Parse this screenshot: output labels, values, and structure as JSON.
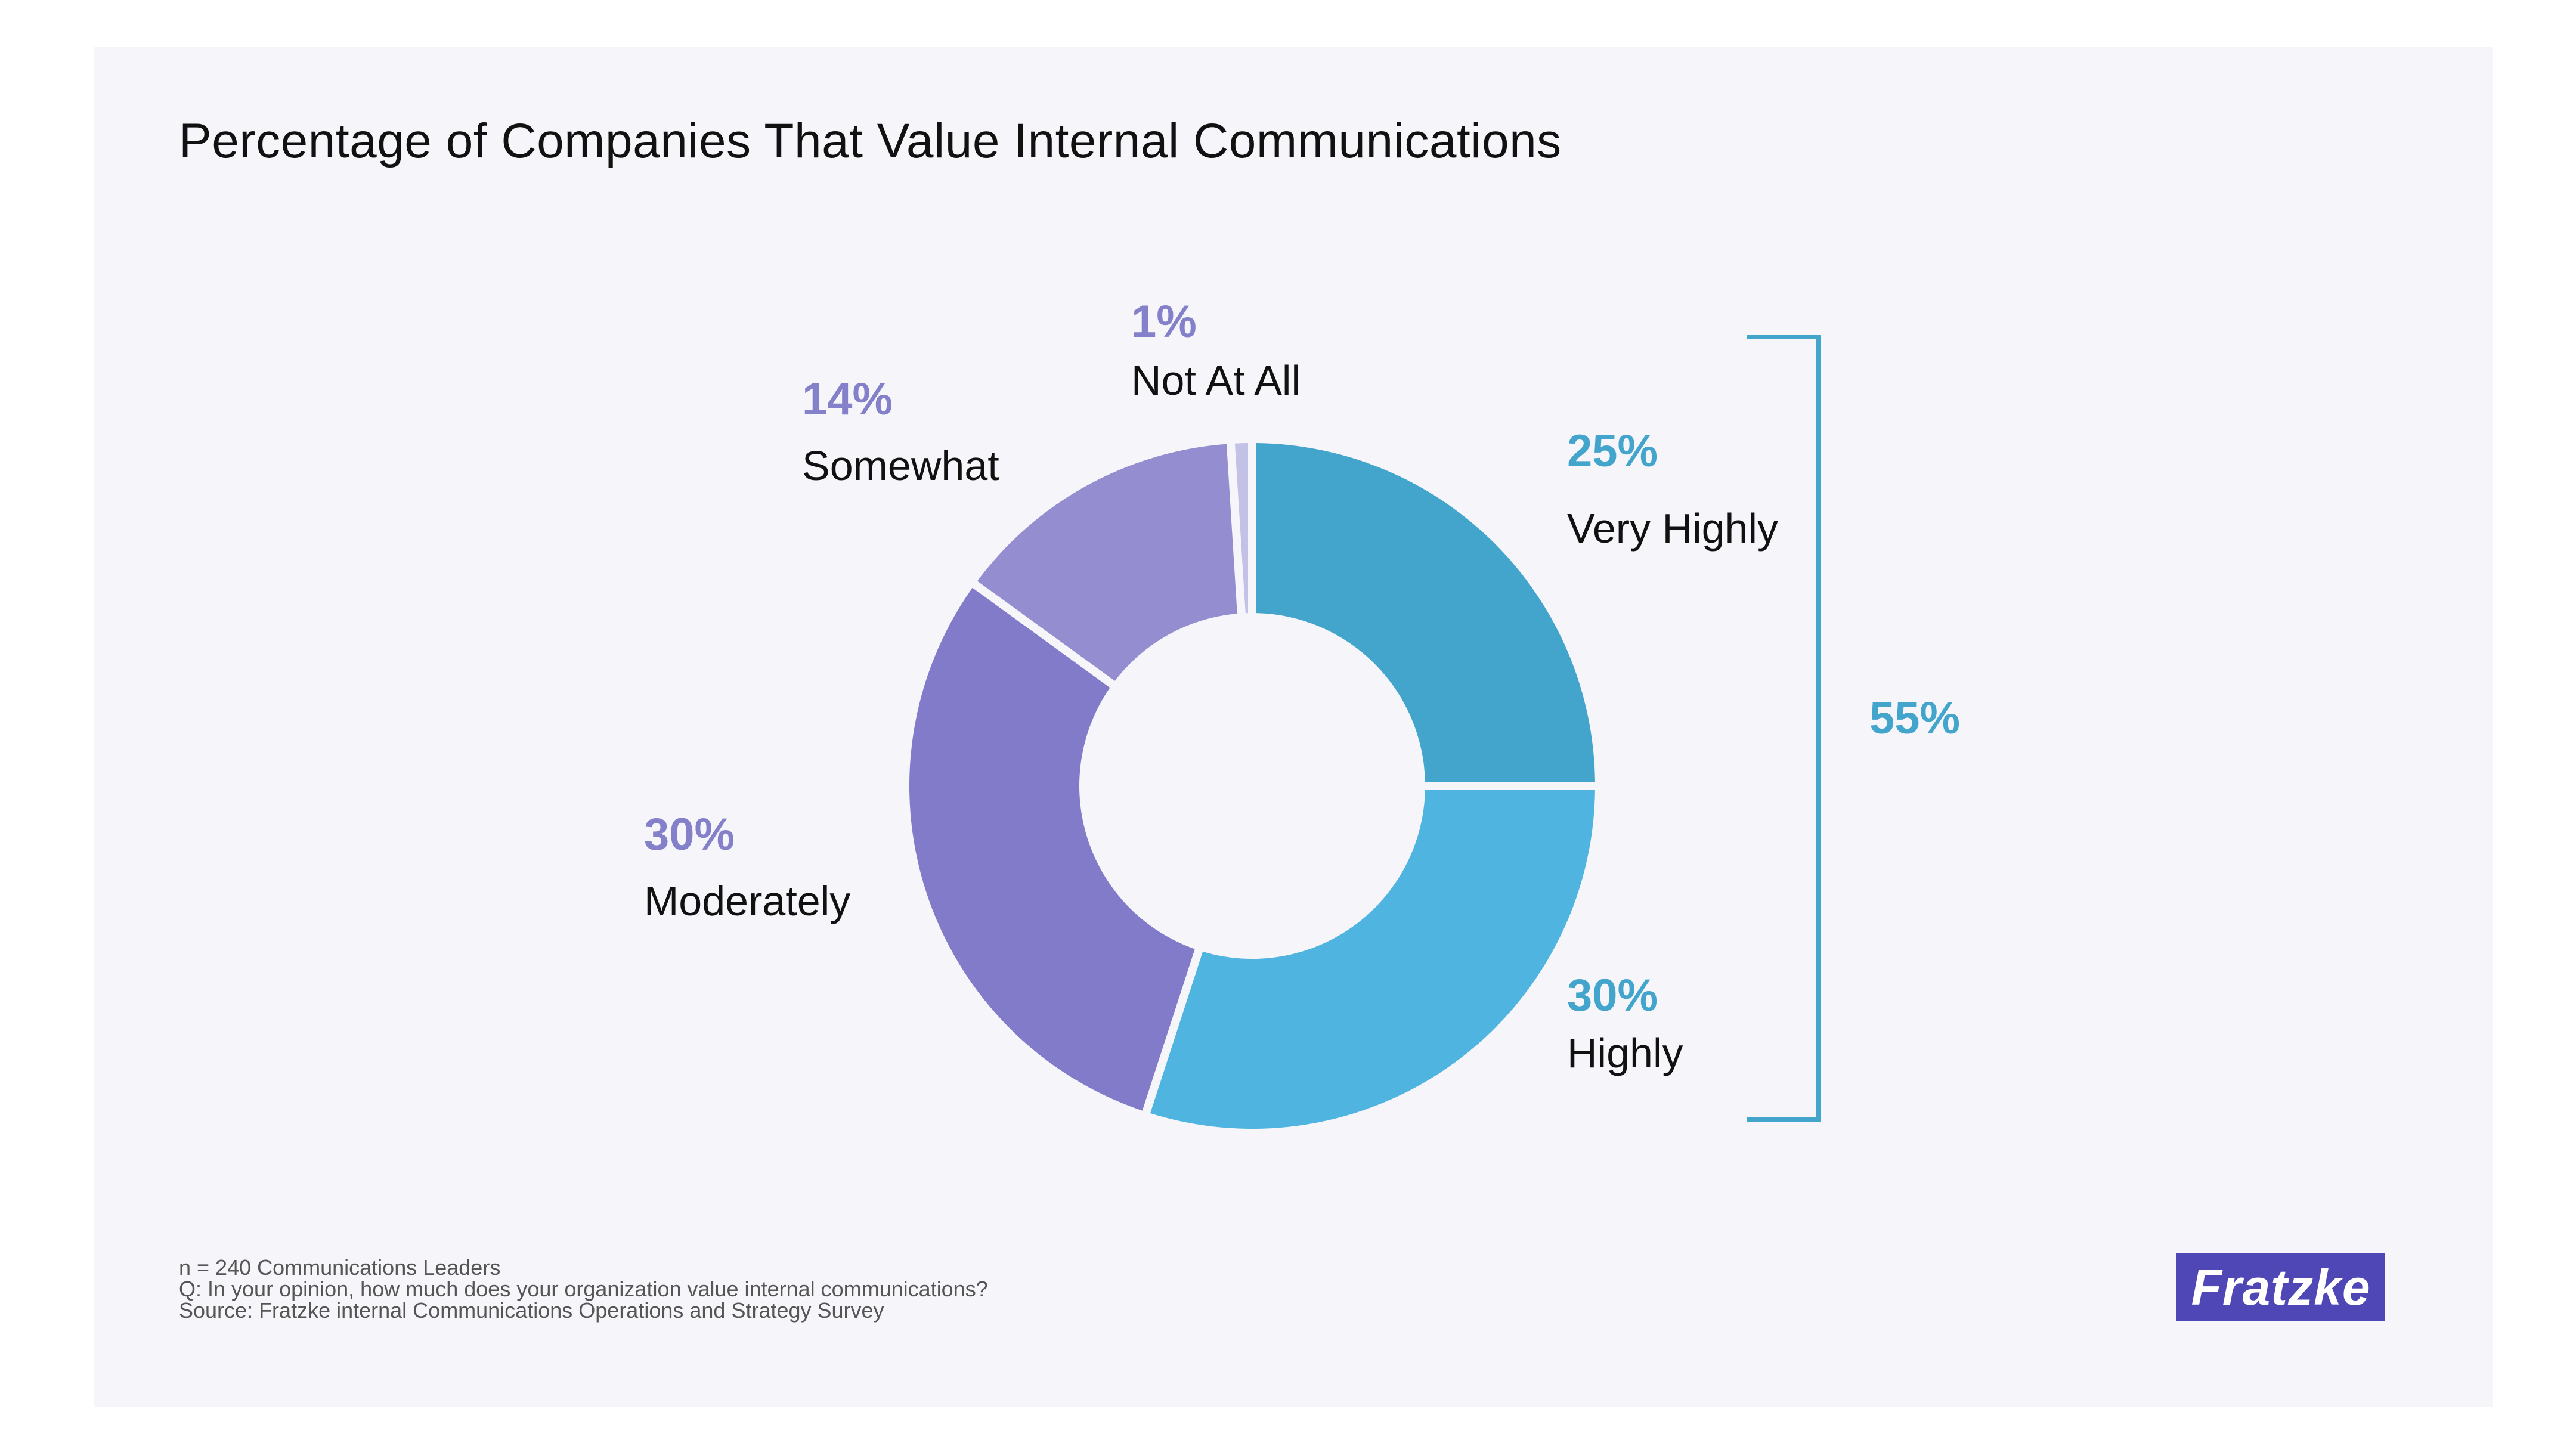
{
  "chart_data": {
    "type": "pie",
    "title": "Percentage of Companies That Value Internal Communications",
    "slices": [
      {
        "label": "Very Highly",
        "value": 25,
        "value_label": "25%",
        "color": "#43a5cb"
      },
      {
        "label": "Highly",
        "value": 30,
        "value_label": "30%",
        "color": "#4fb5e0"
      },
      {
        "label": "Moderately",
        "value": 30,
        "value_label": "30%",
        "color": "#817bc9"
      },
      {
        "label": "Somewhat",
        "value": 14,
        "value_label": "14%",
        "color": "#948ed1"
      },
      {
        "label": "Not At All",
        "value": 1,
        "value_label": "1%",
        "color": "#c4c1e6"
      }
    ],
    "bracket": {
      "label": "55%",
      "covers": [
        "Very Highly",
        "Highly"
      ],
      "color": "#43a5cb"
    },
    "label_colors": {
      "blue": "#43a5cb",
      "purple": "#8480c9"
    }
  },
  "footnotes": [
    "n = 240 Communications Leaders",
    "Q: In your opinion, how much does your organization value internal communications?",
    "Source: Fratzke internal Communications Operations and Strategy Survey"
  ],
  "logo": {
    "text": "Fratzke",
    "color": "#4f47b5"
  }
}
